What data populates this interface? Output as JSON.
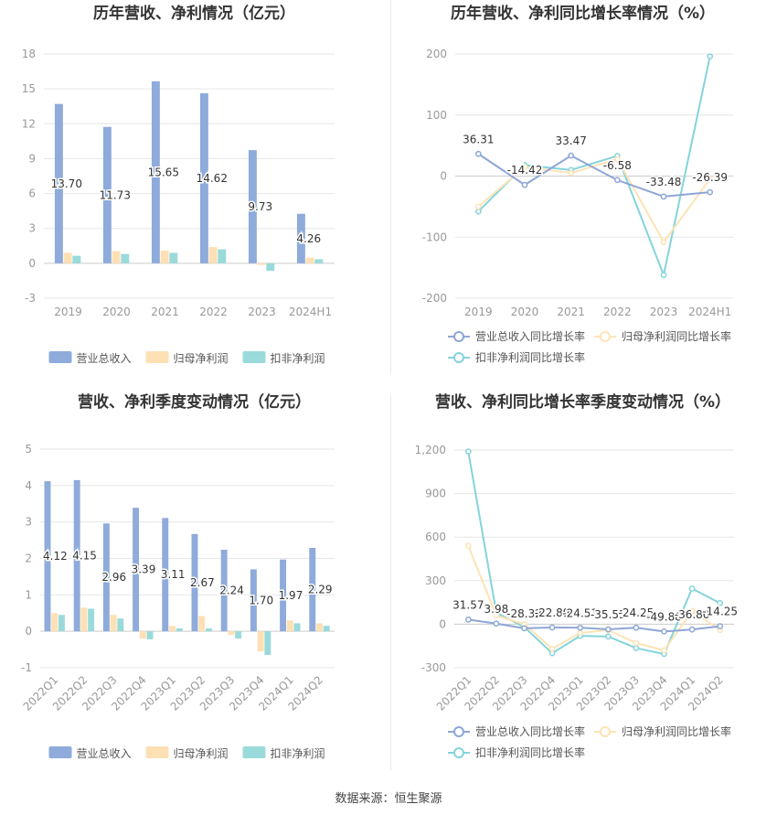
{
  "colors": {
    "revenue": "#8eabdb",
    "net_profit": "#fde0b4",
    "deducted_profit": "#9adada",
    "revenue_line": "#8ea6d6",
    "net_profit_line": "#fde3b5",
    "deducted_profit_line": "#84d4da",
    "axis_text": "#999999",
    "grid": "#e6e6e6",
    "title": "#333333"
  },
  "source": "数据来源：恒生聚源",
  "chart_data": [
    {
      "id": "annual-amount",
      "type": "bar",
      "title": "历年营收、净利情况（亿元）",
      "categories": [
        "2019",
        "2020",
        "2021",
        "2022",
        "2023",
        "2024H1"
      ],
      "ylim": [
        -3,
        18
      ],
      "yticks": [
        -3,
        0,
        3,
        6,
        9,
        12,
        15,
        18
      ],
      "ytick_labels": [
        "-3",
        "0",
        "3",
        "6",
        "9",
        "12",
        "15",
        "18"
      ],
      "series": [
        {
          "name": "营业总收入",
          "color_key": "revenue",
          "values": [
            13.7,
            11.73,
            15.65,
            14.62,
            9.73,
            4.26
          ],
          "labels": [
            "13.70",
            "11.73",
            "15.65",
            "14.62",
            "9.73",
            "4.26"
          ]
        },
        {
          "name": "归母净利润",
          "color_key": "net_profit",
          "values": [
            0.9,
            1.05,
            1.1,
            1.4,
            -0.15,
            0.5
          ]
        },
        {
          "name": "扣非净利润",
          "color_key": "deducted_profit",
          "values": [
            0.65,
            0.8,
            0.9,
            1.2,
            -0.65,
            0.35
          ]
        }
      ]
    },
    {
      "id": "annual-growth",
      "type": "line",
      "title": "历年营收、净利同比增长率情况（%）",
      "categories": [
        "2019",
        "2020",
        "2021",
        "2022",
        "2023",
        "2024H1"
      ],
      "ylim": [
        -200,
        200
      ],
      "yticks": [
        -200,
        -100,
        0,
        100,
        200
      ],
      "ytick_labels": [
        "-200",
        "-100",
        "0",
        "100",
        "200"
      ],
      "series": [
        {
          "name": "营业总收入同比增长率",
          "color_key": "revenue_line",
          "values": [
            36.31,
            -14.42,
            33.47,
            -6.58,
            -33.48,
            -26.39
          ],
          "labels": [
            "36.31",
            "-14.42",
            "33.47",
            "-6.58",
            "-33.48",
            "-26.39"
          ]
        },
        {
          "name": "归母净利润同比增长率",
          "color_key": "net_profit_line",
          "values": [
            -50,
            15,
            5,
            28,
            -108,
            -5
          ]
        },
        {
          "name": "扣非净利润同比增长率",
          "color_key": "deducted_profit_line",
          "values": [
            -58,
            18,
            10,
            33,
            -162,
            196
          ]
        }
      ]
    },
    {
      "id": "quarterly-amount",
      "type": "bar",
      "title": "营收、净利季度变动情况（亿元）",
      "categories": [
        "2022Q1",
        "2022Q2",
        "2022Q3",
        "2022Q4",
        "2023Q1",
        "2023Q2",
        "2023Q3",
        "2023Q4",
        "2024Q1",
        "2024Q2"
      ],
      "ylim": [
        -1,
        5
      ],
      "yticks": [
        -1,
        0,
        1,
        2,
        3,
        4,
        5
      ],
      "ytick_labels": [
        "-1",
        "0",
        "1",
        "2",
        "3",
        "4",
        "5"
      ],
      "series": [
        {
          "name": "营业总收入",
          "color_key": "revenue",
          "values": [
            4.12,
            4.15,
            2.96,
            3.39,
            3.11,
            2.67,
            2.24,
            1.7,
            1.97,
            2.29
          ],
          "labels": [
            "4.12",
            "4.15",
            "2.96",
            "3.39",
            "3.11",
            "2.67",
            "2.24",
            "1.70",
            "1.97",
            "2.29"
          ]
        },
        {
          "name": "归母净利润",
          "color_key": "net_profit",
          "values": [
            0.5,
            0.65,
            0.45,
            -0.2,
            0.15,
            0.42,
            -0.1,
            -0.55,
            0.3,
            0.22
          ]
        },
        {
          "name": "扣非净利润",
          "color_key": "deducted_profit",
          "values": [
            0.45,
            0.62,
            0.35,
            -0.22,
            0.08,
            0.08,
            -0.2,
            -0.65,
            0.22,
            0.15
          ]
        }
      ]
    },
    {
      "id": "quarterly-growth",
      "type": "line",
      "title": "营收、净利同比增长率季度变动情况（%）",
      "categories": [
        "2022Q1",
        "2022Q2",
        "2022Q3",
        "2022Q4",
        "2023Q1",
        "2023Q2",
        "2023Q3",
        "2023Q4",
        "2024Q1",
        "2024Q2"
      ],
      "ylim": [
        -300,
        1200
      ],
      "yticks": [
        -300,
        0,
        300,
        600,
        900,
        1200
      ],
      "ytick_labels": [
        "-300",
        "0",
        "300",
        "600",
        "900",
        "1,200"
      ],
      "series": [
        {
          "name": "营业总收入同比增长率",
          "color_key": "revenue_line",
          "values": [
            31.57,
            3.98,
            -28.32,
            -22.89,
            -24.51,
            -35.55,
            -24.25,
            -49.88,
            -36.8,
            -14.25
          ],
          "labels": [
            "31.57",
            "3.98",
            "-28.32",
            "-22.89",
            "-24.51",
            "-35.55",
            "-24.25",
            "-49.88",
            "-36.80",
            "-14.25"
          ]
        },
        {
          "name": "归母净利润同比增长率",
          "color_key": "net_profit_line",
          "values": [
            540,
            60,
            0,
            -170,
            -60,
            -40,
            -130,
            -180,
            90,
            -40
          ]
        },
        {
          "name": "扣非净利润同比增长率",
          "color_key": "deducted_profit_line",
          "values": [
            1190,
            80,
            -20,
            -200,
            -80,
            -85,
            -165,
            -205,
            245,
            145
          ]
        }
      ]
    }
  ]
}
